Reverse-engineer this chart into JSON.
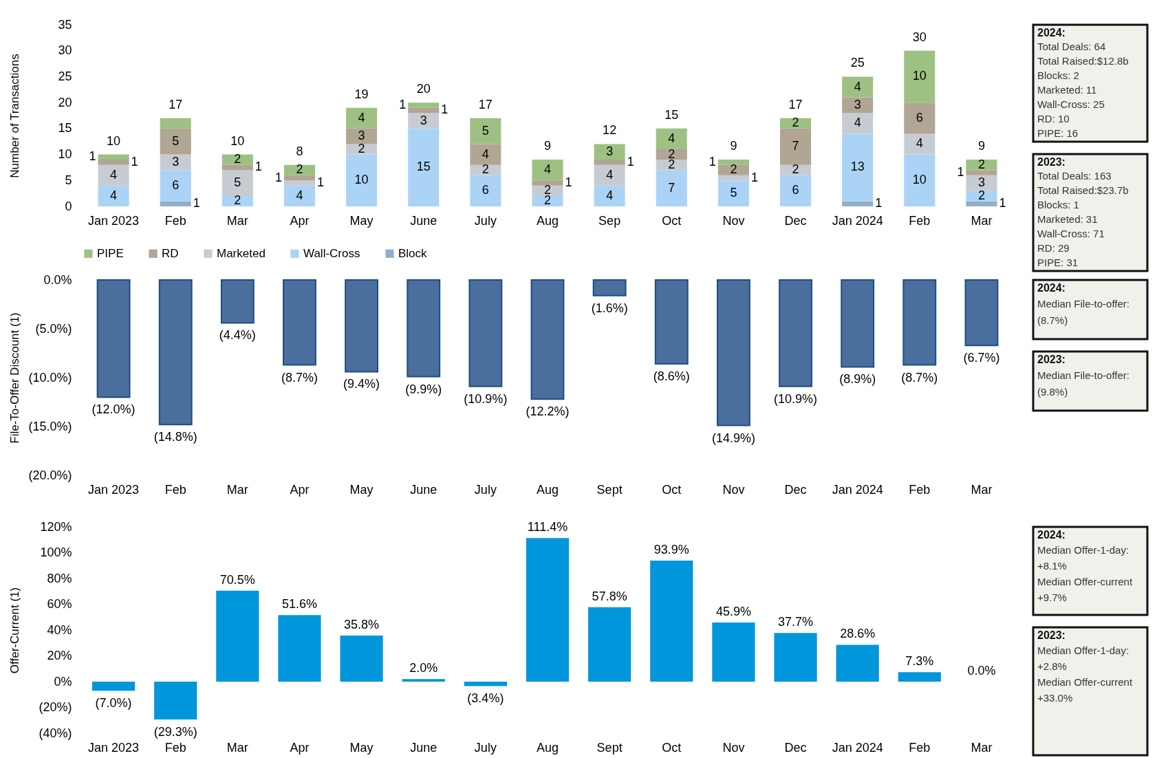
{
  "chart_data": [
    {
      "type": "bar",
      "ylabel": "Number of Transactions",
      "categories": [
        "Jan 2023",
        "Feb",
        "Mar",
        "Apr",
        "May",
        "June",
        "July",
        "Aug",
        "Sep",
        "Oct",
        "Nov",
        "Dec",
        "Jan 2024",
        "Feb",
        "Mar"
      ],
      "stacked": true,
      "ylim": [
        0,
        35
      ],
      "yticks": [
        0,
        5,
        10,
        15,
        20,
        25,
        30,
        35
      ],
      "legend": "bottom",
      "series": [
        {
          "name": "Block",
          "color": "#92afc9",
          "values": [
            0,
            1,
            0,
            0,
            0,
            0,
            0,
            0,
            0,
            0,
            0,
            0,
            1,
            0,
            1
          ],
          "value_labels": [
            null,
            "1",
            null,
            null,
            null,
            null,
            null,
            null,
            null,
            null,
            null,
            null,
            "1",
            null,
            "1"
          ]
        },
        {
          "name": "Wall-Cross",
          "color": "#abd3f6",
          "values": [
            4,
            6,
            2,
            4,
            10,
            15,
            6,
            2,
            4,
            7,
            5,
            6,
            13,
            10,
            2
          ],
          "value_labels": [
            "4",
            "6",
            "2",
            "4",
            "10",
            "15",
            "6",
            "2",
            "4",
            "7",
            "5",
            "6",
            "13",
            "10",
            "2"
          ]
        },
        {
          "name": "Marketed",
          "color": "#c7ccd3",
          "values": [
            4,
            3,
            5,
            1,
            2,
            3,
            2,
            2,
            4,
            2,
            1,
            2,
            4,
            4,
            3
          ],
          "value_labels": [
            "4",
            "3",
            "5",
            "1",
            "2",
            "3",
            "2",
            "2",
            "4",
            "2",
            "1",
            "2",
            "4",
            "4",
            "3"
          ]
        },
        {
          "name": "RD",
          "color": "#b1a594",
          "values": [
            1,
            5,
            1,
            1,
            3,
            1,
            4,
            1,
            1,
            2,
            2,
            7,
            3,
            6,
            1
          ],
          "value_labels": [
            "1",
            "5",
            "1",
            "1",
            "3",
            "1",
            "4",
            "1",
            "1",
            "2",
            "2",
            "7",
            "3",
            "6",
            "1"
          ]
        },
        {
          "name": "PIPE",
          "color": "#9dc183",
          "values": [
            1,
            2,
            2,
            2,
            4,
            1,
            5,
            4,
            3,
            4,
            1,
            2,
            4,
            10,
            2
          ],
          "value_labels": [
            "1",
            null,
            "2",
            "2",
            "4",
            "1",
            "5",
            "4",
            "3",
            "4",
            "1",
            "2",
            "4",
            "10",
            "2"
          ]
        }
      ],
      "totals": [
        "10",
        "17",
        "10",
        "8",
        "19",
        "20",
        "17",
        "9",
        "12",
        "15",
        "9",
        "17",
        "25",
        "30",
        "9"
      ]
    },
    {
      "type": "other",
      "title": "2024:",
      "annotations": [
        "Total Deals: 64",
        "Total Raised:$12.8b",
        "Blocks: 2",
        "Marketed: 11",
        "Wall-Cross: 25",
        "RD: 10",
        "PIPE: 16"
      ]
    },
    {
      "type": "other",
      "title": "2023:",
      "annotations": [
        "Total Deals: 163",
        "Total Raised:$23.7b",
        "Blocks: 1",
        "Marketed: 31",
        "Wall-Cross: 71",
        "RD: 29",
        "PIPE: 31"
      ]
    },
    {
      "type": "bar",
      "ylabel": "File-To-Offer Discount (1)",
      "categories": [
        "Jan 2023",
        "Feb",
        "Mar",
        "Apr",
        "May",
        "June",
        "July",
        "Aug",
        "Sept",
        "Oct",
        "Nov",
        "Dec",
        "Jan 2024",
        "Feb",
        "Mar"
      ],
      "color": "#4a6f9e",
      "values": [
        -12.0,
        -14.8,
        -4.4,
        -8.7,
        -9.4,
        -9.9,
        -10.9,
        -12.2,
        -1.6,
        -8.6,
        -14.9,
        -10.9,
        -8.9,
        -8.7,
        -6.7
      ],
      "value_labels": [
        "(12.0%)",
        "(14.8%)",
        "(4.4%)",
        "(8.7%)",
        "(9.4%)",
        "(9.9%)",
        "(10.9%)",
        "(12.2%)",
        "(1.6%)",
        "(8.6%)",
        "(14.9%)",
        "(10.9%)",
        "(8.9%)",
        "(8.7%)",
        "(6.7%)"
      ],
      "ylim": [
        -20,
        0
      ],
      "yticks": [
        {
          "value": 0,
          "label": "0.0%"
        },
        {
          "value": -5,
          "label": "(5.0%)"
        },
        {
          "value": -10,
          "label": "(10.0%)"
        },
        {
          "value": -15,
          "label": "(15.0%)"
        },
        {
          "value": -20,
          "label": "(20.0%)"
        }
      ]
    },
    {
      "type": "other",
      "title": "2024:",
      "annotations": [
        "Median File-to-offer:",
        "(8.7%)"
      ]
    },
    {
      "type": "other",
      "title": "2023:",
      "annotations": [
        "Median File-to-offer:",
        "(9.8%)"
      ]
    },
    {
      "type": "bar",
      "ylabel": "Offer-Current (1)",
      "categories": [
        "Jan 2023",
        "Feb",
        "Mar",
        "Apr",
        "May",
        "June",
        "July",
        "Aug",
        "Sept",
        "Oct",
        "Nov",
        "Dec",
        "Jan 2024",
        "Feb",
        "Mar"
      ],
      "color": "#0096db",
      "values": [
        -7.0,
        -29.3,
        70.5,
        51.6,
        35.8,
        2.0,
        -3.4,
        111.4,
        57.8,
        93.9,
        45.9,
        37.7,
        28.6,
        7.3,
        0.0
      ],
      "value_labels": [
        "(7.0%)",
        "(29.3%)",
        "70.5%",
        "51.6%",
        "35.8%",
        "2.0%",
        "(3.4%)",
        "111.4%",
        "57.8%",
        "93.9%",
        "45.9%",
        "37.7%",
        "28.6%",
        "7.3%",
        "0.0%"
      ],
      "ylim": [
        -40,
        120
      ],
      "yticks": [
        {
          "value": 120,
          "label": "120%"
        },
        {
          "value": 100,
          "label": "100%"
        },
        {
          "value": 80,
          "label": "80%"
        },
        {
          "value": 60,
          "label": "60%"
        },
        {
          "value": 40,
          "label": "40%"
        },
        {
          "value": 20,
          "label": "20%"
        },
        {
          "value": 0,
          "label": "0%"
        },
        {
          "value": -20,
          "label": "(20%)"
        },
        {
          "value": -40,
          "label": "(40%)"
        }
      ]
    },
    {
      "type": "other",
      "title": "2024:",
      "annotations": [
        "Median Offer-1-day:",
        "+8.1%",
        "Median Offer-current",
        "+9.7%"
      ]
    },
    {
      "type": "other",
      "title": "2023:",
      "annotations": [
        "Median Offer-1-day:",
        "+2.8%",
        "Median Offer-current",
        "+33.0%"
      ]
    }
  ]
}
